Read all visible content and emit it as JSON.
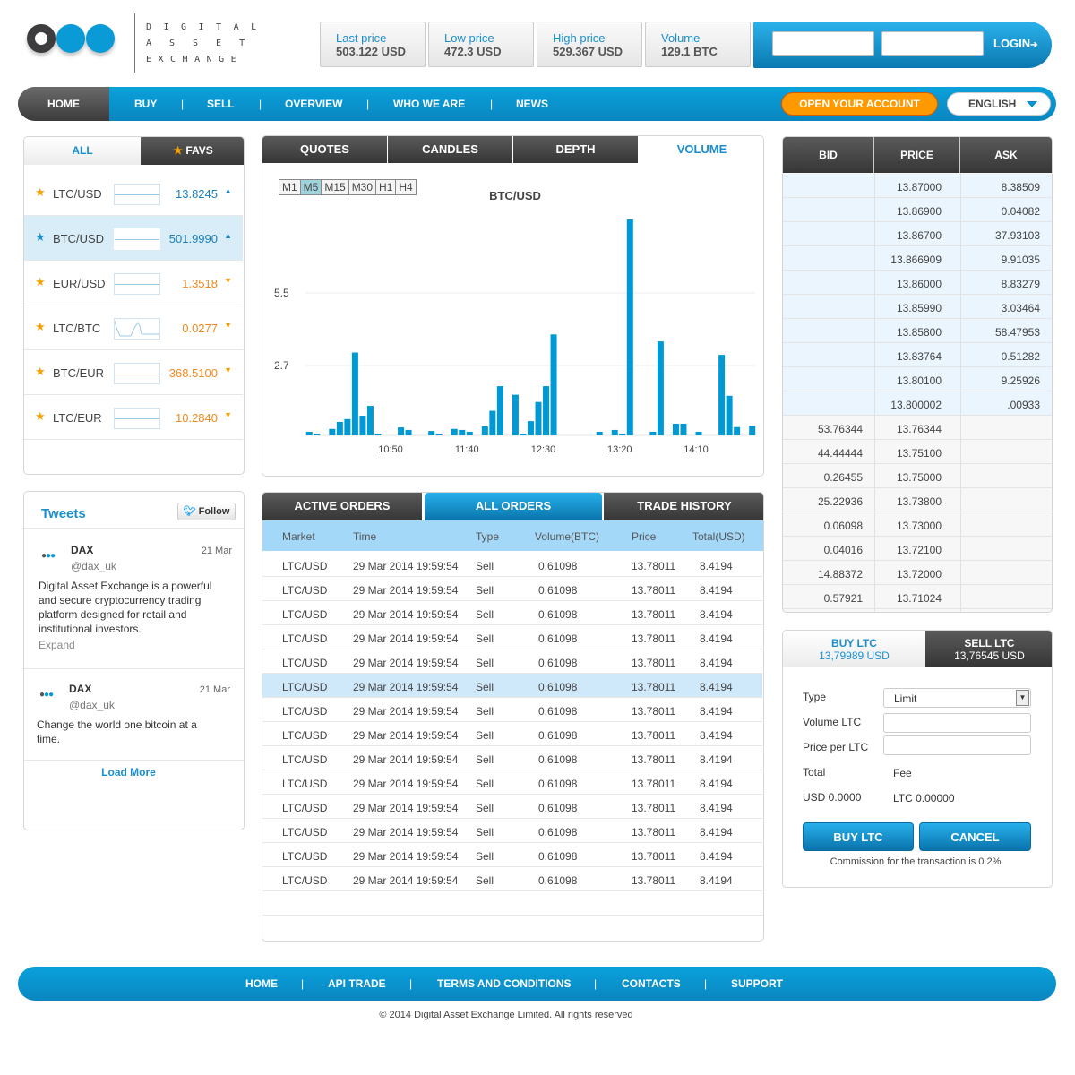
{
  "logo": {
    "line1": "DIGITAL",
    "line2": "ASSET",
    "line3": "EXCHANGE"
  },
  "stats": [
    {
      "label": "Last price",
      "value": "503.122 USD"
    },
    {
      "label": "Low price",
      "value": "472.3 USD"
    },
    {
      "label": "High price",
      "value": "529.367 USD"
    },
    {
      "label": "Volume",
      "value": "129.1 BTC"
    }
  ],
  "login": {
    "label": "LOGIN",
    "arrow": "➔"
  },
  "nav": {
    "items": [
      "HOME",
      "BUY",
      "SELL",
      "OVERVIEW",
      "WHO WE ARE",
      "NEWS"
    ],
    "sep": "|",
    "open_account": "OPEN YOUR ACCOUNT",
    "language": "ENGLISH"
  },
  "pairs": {
    "tabs": {
      "all": "ALL",
      "favs": "FAVS"
    },
    "star": "★",
    "items": [
      {
        "name": "LTC/USD",
        "price": "13.8245",
        "dir": "▲",
        "color": "#1a7fb8"
      },
      {
        "name": "BTC/USD",
        "price": "501.9990",
        "dir": "▲",
        "color": "#1a7fb8"
      },
      {
        "name": "EUR/USD",
        "price": "1.3518",
        "dir": "▼",
        "color": "#f08a1c"
      },
      {
        "name": "LTC/BTC",
        "price": "0.0277",
        "dir": "▼",
        "color": "#f08a1c"
      },
      {
        "name": "BTC/EUR",
        "price": "368.5100",
        "dir": "▼",
        "color": "#f08a1c"
      },
      {
        "name": "LTC/EUR",
        "price": "10.2840",
        "dir": "▼",
        "color": "#f08a1c"
      }
    ]
  },
  "chart_tabs": [
    "QUOTES",
    "CANDLES",
    "DEPTH",
    "VOLUME"
  ],
  "timeframes": [
    "M1",
    "M5",
    "M15",
    "M30",
    "H1",
    "H4"
  ],
  "chart_data": {
    "type": "bar",
    "title": "BTC/USD",
    "xlabel": "",
    "ylabel": "",
    "yticks": [
      2.7,
      5.5
    ],
    "ylim": [
      0,
      8.6
    ],
    "xticks": [
      "10:50",
      "11:40",
      "12:30",
      "13:20",
      "14:10"
    ],
    "x": [
      "10:00",
      "10:05",
      "10:15",
      "10:20",
      "10:25",
      "10:30",
      "10:35",
      "10:40",
      "10:45",
      "11:00",
      "11:05",
      "11:20",
      "11:25",
      "11:35",
      "11:40",
      "11:45",
      "11:55",
      "12:00",
      "12:05",
      "12:15",
      "12:20",
      "12:25",
      "12:30",
      "12:35",
      "12:40",
      "13:10",
      "13:20",
      "13:25",
      "13:30",
      "13:45",
      "13:50",
      "14:00",
      "14:05",
      "14:15",
      "14:30",
      "14:35",
      "14:40",
      "14:50"
    ],
    "values": [
      0.14,
      0.07,
      0.25,
      0.52,
      0.63,
      3.2,
      0.76,
      1.14,
      0.07,
      0.31,
      0.21,
      0.17,
      0.07,
      0.25,
      0.21,
      0.14,
      0.35,
      0.95,
      1.9,
      1.57,
      0.07,
      0.55,
      1.29,
      1.9,
      3.9,
      0.14,
      0.21,
      0.07,
      8.34,
      0.14,
      3.63,
      0.45,
      0.45,
      0.14,
      3.11,
      1.53,
      0.32,
      0.38
    ],
    "color": "#0099d4"
  },
  "tweets": {
    "title": "Tweets",
    "follow": "Follow",
    "load_more": "Load More",
    "items": [
      {
        "name": "DAX",
        "handle": "@dax_uk",
        "date": "21 Mar",
        "text": "Digital Asset Exchange is a powerful and secure cryptocurrency trading platform designed for retail and institutional investors.",
        "expand": "Expand"
      },
      {
        "name": "DAX",
        "handle": "@dax_uk",
        "date": "21 Mar",
        "text": "Change the world one bitcoin at a time."
      }
    ]
  },
  "orders": {
    "tabs": [
      "ACTIVE ORDERS",
      "ALL ORDERS",
      "TRADE HISTORY"
    ],
    "columns": [
      "Market",
      "Time",
      "Type",
      "Volume(BTC)",
      "Price",
      "Total(USD)"
    ],
    "rows": [
      [
        "LTC/USD",
        "29 Mar 2014 19:59:54",
        "Sell",
        "0.61098",
        "13.78011",
        "8.4194"
      ],
      [
        "LTC/USD",
        "29 Mar 2014 19:59:54",
        "Sell",
        "0.61098",
        "13.78011",
        "8.4194"
      ],
      [
        "LTC/USD",
        "29 Mar 2014 19:59:54",
        "Sell",
        "0.61098",
        "13.78011",
        "8.4194"
      ],
      [
        "LTC/USD",
        "29 Mar 2014 19:59:54",
        "Sell",
        "0.61098",
        "13.78011",
        "8.4194"
      ],
      [
        "LTC/USD",
        "29 Mar 2014 19:59:54",
        "Sell",
        "0.61098",
        "13.78011",
        "8.4194"
      ],
      [
        "LTC/USD",
        "29 Mar 2014 19:59:54",
        "Sell",
        "0.61098",
        "13.78011",
        "8.4194"
      ],
      [
        "LTC/USD",
        "29 Mar 2014 19:59:54",
        "Sell",
        "0.61098",
        "13.78011",
        "8.4194"
      ],
      [
        "LTC/USD",
        "29 Mar 2014 19:59:54",
        "Sell",
        "0.61098",
        "13.78011",
        "8.4194"
      ],
      [
        "LTC/USD",
        "29 Mar 2014 19:59:54",
        "Sell",
        "0.61098",
        "13.78011",
        "8.4194"
      ],
      [
        "LTC/USD",
        "29 Mar 2014 19:59:54",
        "Sell",
        "0.61098",
        "13.78011",
        "8.4194"
      ],
      [
        "LTC/USD",
        "29 Mar 2014 19:59:54",
        "Sell",
        "0.61098",
        "13.78011",
        "8.4194"
      ],
      [
        "LTC/USD",
        "29 Mar 2014 19:59:54",
        "Sell",
        "0.61098",
        "13.78011",
        "8.4194"
      ],
      [
        "LTC/USD",
        "29 Mar 2014 19:59:54",
        "Sell",
        "0.61098",
        "13.78011",
        "8.4194"
      ],
      [
        "LTC/USD",
        "29 Mar 2014 19:59:54",
        "Sell",
        "0.61098",
        "13.78011",
        "8.4194"
      ]
    ],
    "selected_row": 5
  },
  "orderbook": {
    "columns": [
      "BID",
      "PRICE",
      "ASK"
    ],
    "asks": [
      [
        "13.87000",
        "8.38509"
      ],
      [
        "13.86900",
        "0.04082"
      ],
      [
        "13.86700",
        "37.93103"
      ],
      [
        "13.866909",
        "9.91035"
      ],
      [
        "13.86000",
        "8.83279"
      ],
      [
        "13.85990",
        "3.03464"
      ],
      [
        "13.85800",
        "58.47953"
      ],
      [
        "13.83764",
        "0.51282"
      ],
      [
        "13.80100",
        "9.25926"
      ],
      [
        "13.800002",
        ".00933"
      ]
    ],
    "bids": [
      [
        "53.76344",
        "13.76344"
      ],
      [
        "44.44444",
        "13.75100"
      ],
      [
        "0.26455",
        "13.75000"
      ],
      [
        "25.22936",
        "13.73800"
      ],
      [
        "0.06098",
        "13.73000"
      ],
      [
        "0.04016",
        "13.72100"
      ],
      [
        "14.88372",
        "13.72000"
      ],
      [
        "0.57921",
        "13.71024"
      ]
    ]
  },
  "trade": {
    "buy_tab": "BUY LTC",
    "buy_price": "13,79989 USD",
    "sell_tab": "SELL LTC",
    "sell_price": "13,76545 USD",
    "type_label": "Type",
    "type_value": "Limit",
    "volume_label": "Volume LTC",
    "price_label": "Price per LTC",
    "total_label": "Total",
    "fee_label": "Fee",
    "total_value": "USD 0.0000",
    "fee_value": "LTC 0.00000",
    "buy_button": "BUY LTC",
    "cancel_button": "CANCEL",
    "commission": "Commission for the transaction is 0.2%"
  },
  "footer": {
    "items": [
      "HOME",
      "API TRADE",
      "TERMS AND CONDITIONS",
      "CONTACTS",
      "SUPPORT"
    ],
    "sep": "|",
    "copyright": "© 2014 Digital Asset Exchange Limited. All rights reserved"
  }
}
